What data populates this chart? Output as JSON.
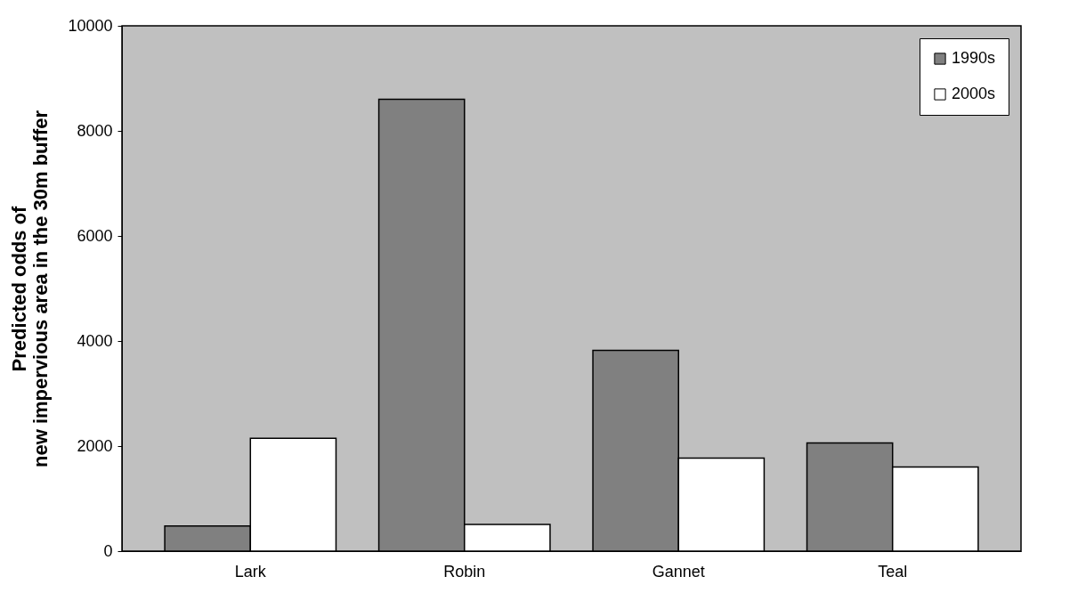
{
  "chart_data": {
    "type": "bar",
    "ylabel": "Predicted odds of\nnew impervious area in the 30m buffer",
    "categories": [
      "Lark",
      "Robin",
      "Gannet",
      "Teal"
    ],
    "series": [
      {
        "name": "1990s",
        "color": "#808080",
        "values": [
          480,
          8600,
          3820,
          2060
        ]
      },
      {
        "name": "2000s",
        "color": "#ffffff",
        "values": [
          2150,
          510,
          1770,
          1600
        ]
      }
    ],
    "ylim": [
      0,
      10000
    ],
    "yticks": [
      0,
      2000,
      4000,
      6000,
      8000,
      10000
    ],
    "grid": false,
    "legend": "top right"
  }
}
